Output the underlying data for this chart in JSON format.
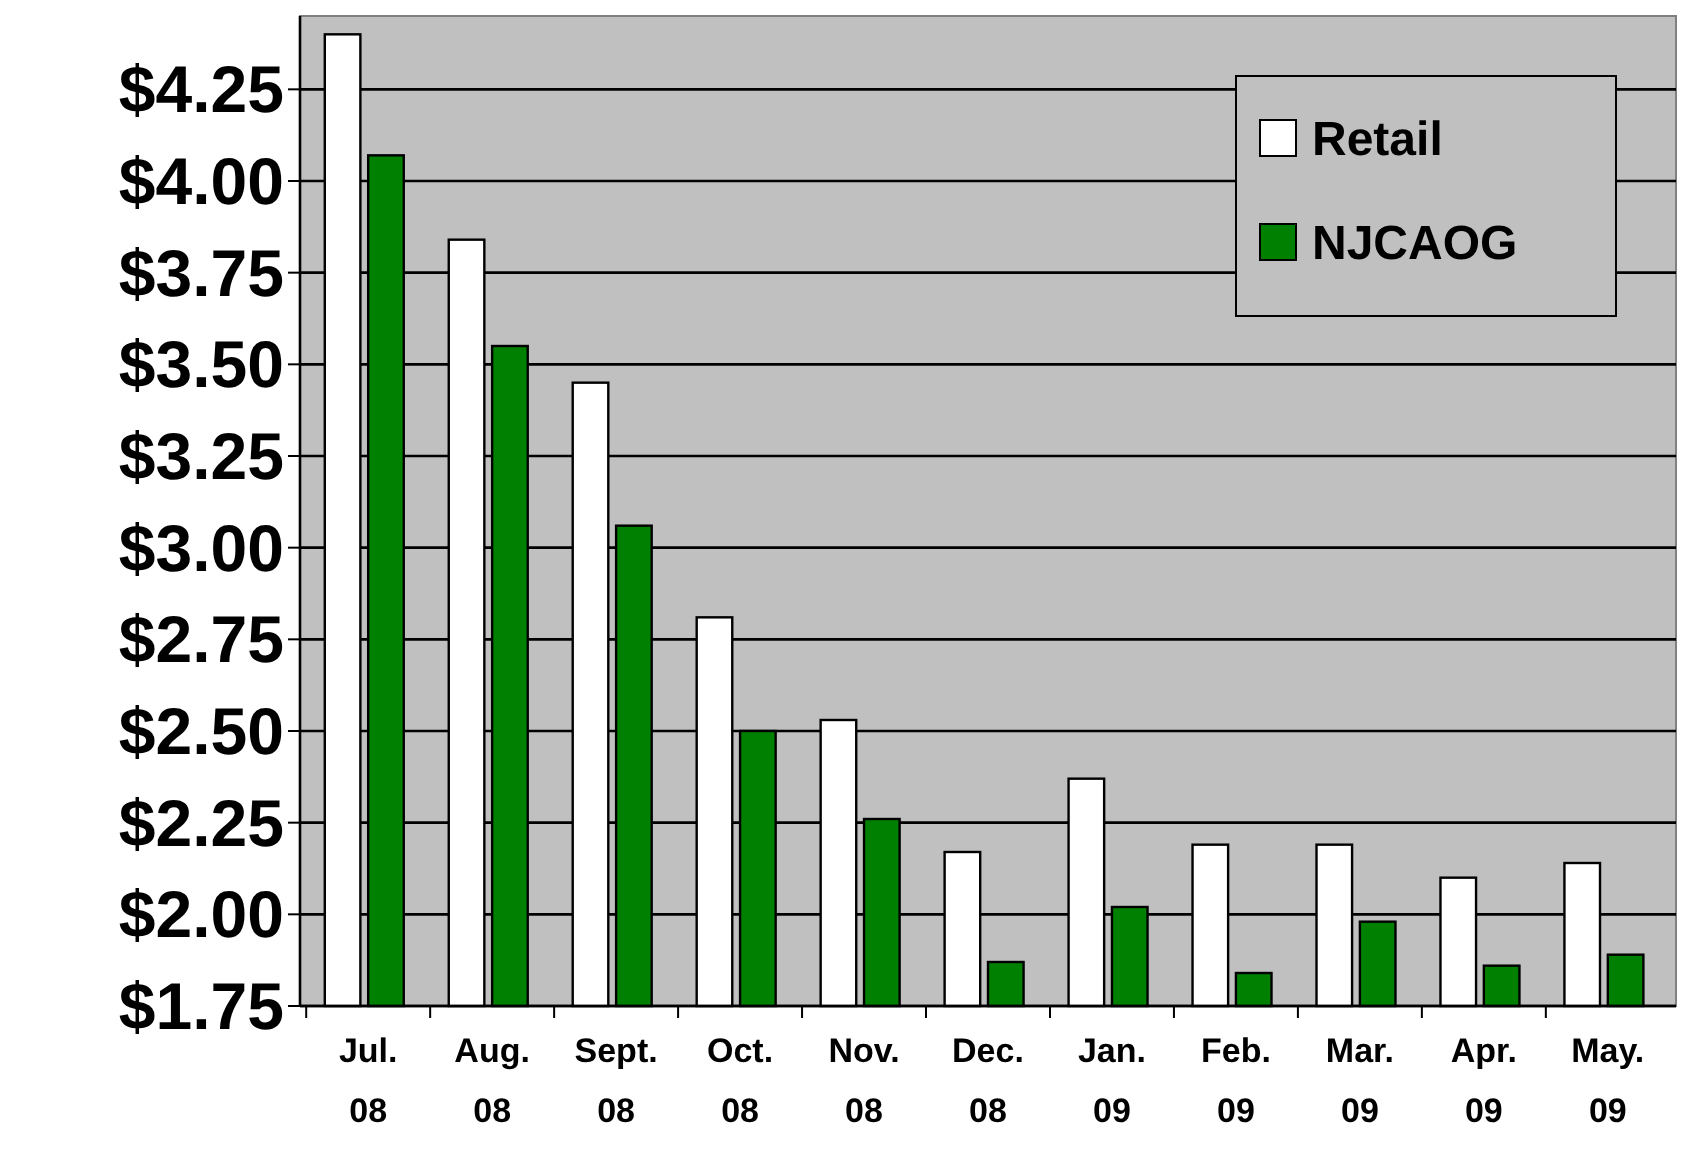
{
  "chart_data": {
    "type": "bar",
    "categories": [
      "Jul.\n08",
      "Aug.\n08",
      "Sept.\n08",
      "Oct.\n08",
      "Nov.\n08",
      "Dec.\n08",
      "Jan.\n09",
      "Feb.\n09",
      "Mar.\n09",
      "Apr.\n09",
      "May.\n09"
    ],
    "series": [
      {
        "name": "Retail",
        "color": "#ffffff",
        "values": [
          4.4,
          3.84,
          3.45,
          2.81,
          2.53,
          2.17,
          2.37,
          2.19,
          2.19,
          2.1,
          2.14
        ]
      },
      {
        "name": "NJCAOG",
        "color": "#008000",
        "values": [
          4.07,
          3.55,
          3.06,
          2.5,
          2.26,
          1.87,
          2.02,
          1.84,
          1.98,
          1.86,
          1.89
        ]
      }
    ],
    "ylim": [
      1.75,
      4.45
    ],
    "yticks": [
      {
        "value": 1.75,
        "label": "$1.75"
      },
      {
        "value": 2,
        "label": "$2.00"
      },
      {
        "value": 2.25,
        "label": "$2.25"
      },
      {
        "value": 2.5,
        "label": "$2.50"
      },
      {
        "value": 2.75,
        "label": "$2.75"
      },
      {
        "value": 3,
        "label": "$3.00"
      },
      {
        "value": 3.25,
        "label": "$3.25"
      },
      {
        "value": 3.5,
        "label": "$3.50"
      },
      {
        "value": 3.75,
        "label": "$3.75"
      },
      {
        "value": 4,
        "label": "$4.00"
      },
      {
        "value": 4.25,
        "label": "$4.25"
      }
    ],
    "grid": "y",
    "legend": "top right"
  }
}
